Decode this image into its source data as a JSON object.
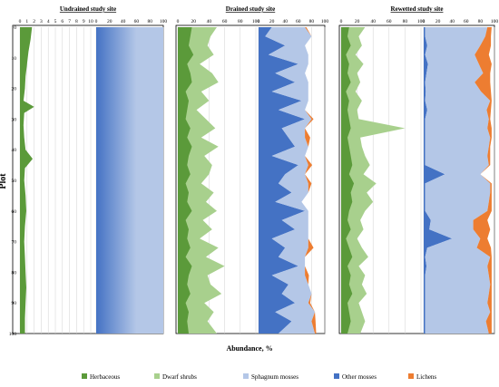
{
  "chart_data": {
    "type": "area",
    "ylabel": "Plot",
    "xlabel": "Abundance, %",
    "y_ticks": [
      0,
      10,
      20,
      30,
      40,
      50,
      60,
      70,
      80,
      90,
      100
    ],
    "ylim": [
      0,
      100
    ],
    "colors": {
      "herbaceous": "#5b9a3a",
      "dwarf_shrubs": "#a8d08d",
      "sphagnum_mosses": "#b4c7e7",
      "other_mosses": "#4472c4",
      "lichens": "#ed7d31"
    },
    "legend": [
      {
        "key": "herbaceous",
        "label": "Herbaceous"
      },
      {
        "key": "dwarf_shrubs",
        "label": "Dwarf shrubs"
      },
      {
        "key": "sphagnum_mosses",
        "label": "Sphagnum mosses"
      },
      {
        "key": "other_mosses",
        "label": "Other mosses"
      },
      {
        "key": "lichens",
        "label": "Lichens"
      }
    ],
    "panels": [
      {
        "title": "Undrained study site",
        "sub_axes": [
          {
            "key": "herbaceous",
            "ticks": [
              "0",
              "1",
              "2",
              "3",
              "4",
              "5",
              "6",
              "7",
              "8",
              "9",
              "10"
            ],
            "xlim": [
              0,
              10
            ],
            "plots": [
              0,
              4,
              8,
              12,
              16,
              20,
              24,
              26,
              28,
              32,
              36,
              40,
              43,
              46,
              50,
              55,
              60,
              65,
              70,
              75,
              80,
              85,
              90,
              95,
              100
            ],
            "values": [
              1.7,
              1.5,
              1.2,
              1.0,
              0.8,
              0.7,
              0.5,
              2.0,
              0.6,
              0.5,
              0.6,
              0.8,
              1.8,
              0.7,
              0.6,
              0.8,
              0.9,
              0.7,
              0.6,
              0.7,
              0.8,
              0.9,
              0.8,
              0.7,
              0.7
            ]
          },
          {
            "key": "sphagnum_mosses",
            "ticks": [
              "0",
              "20",
              "40",
              "60",
              "80",
              "100"
            ],
            "xlim": [
              0,
              100
            ],
            "plots": [
              0,
              100
            ],
            "values": [
              100,
              100
            ]
          }
        ]
      },
      {
        "title": "Drained study site",
        "sub_axes": [
          {
            "key": "dwarf_shrubs",
            "ticks": [
              "0",
              "20",
              "40",
              "60",
              "80",
              "100"
            ],
            "xlim": [
              0,
              100
            ],
            "plots": [
              0,
              3,
              6,
              9,
              12,
              15,
              18,
              21,
              24,
              27,
              30,
              33,
              36,
              39,
              42,
              45,
              48,
              51,
              54,
              57,
              60,
              63,
              66,
              69,
              72,
              75,
              78,
              81,
              84,
              87,
              90,
              93,
              96,
              100
            ],
            "values": [
              50,
              42,
              38,
              46,
              28,
              44,
              52,
              30,
              40,
              24,
              36,
              48,
              30,
              52,
              34,
              44,
              40,
              30,
              46,
              36,
              50,
              32,
              44,
              28,
              52,
              36,
              60,
              38,
              42,
              56,
              34,
              46,
              38,
              50
            ],
            "herb_values": [
              18,
              16,
              14,
              20,
              12,
              16,
              18,
              10,
              14,
              12,
              10,
              16,
              12,
              18,
              14,
              12,
              16,
              10,
              14,
              12,
              18,
              10,
              14,
              12,
              16,
              10,
              18,
              14,
              12,
              16,
              10,
              14,
              12,
              14
            ]
          },
          {
            "key": "moss_stack",
            "ticks": [
              "0",
              "20",
              "40",
              "60",
              "80",
              "100"
            ],
            "xlim": [
              0,
              100
            ],
            "plots": [
              0,
              3,
              6,
              9,
              12,
              15,
              18,
              21,
              24,
              27,
              30,
              33,
              36,
              39,
              42,
              45,
              48,
              51,
              54,
              57,
              60,
              63,
              66,
              69,
              72,
              75,
              78,
              81,
              84,
              87,
              90,
              93,
              96,
              100
            ],
            "other_mosses": [
              20,
              10,
              40,
              15,
              60,
              25,
              55,
              20,
              65,
              30,
              70,
              35,
              45,
              55,
              20,
              60,
              40,
              30,
              50,
              25,
              70,
              35,
              55,
              20,
              40,
              30,
              60,
              20,
              45,
              35,
              55,
              25,
              50,
              30
            ],
            "sphagnum_mosses": [
              50,
              70,
              30,
              60,
              15,
              45,
              20,
              55,
              10,
              40,
              10,
              35,
              25,
              20,
              50,
              15,
              30,
              45,
              25,
              40,
              5,
              40,
              20,
              55,
              35,
              40,
              10,
              50,
              30,
              45,
              20,
              60,
              30,
              55
            ],
            "lichens": [
              2,
              0,
              0,
              0,
              0,
              0,
              0,
              0,
              0,
              0,
              3,
              0,
              8,
              0,
              0,
              6,
              0,
              5,
              0,
              0,
              0,
              0,
              0,
              0,
              8,
              0,
              0,
              6,
              0,
              0,
              3,
              0,
              6,
              2
            ]
          }
        ]
      },
      {
        "title": "Rewetted study site",
        "sub_axes": [
          {
            "key": "dwarf_shrubs",
            "ticks": [
              "0",
              "20",
              "40",
              "60",
              "80",
              "100"
            ],
            "xlim": [
              0,
              100
            ],
            "plots": [
              0,
              3,
              6,
              9,
              12,
              15,
              18,
              21,
              24,
              27,
              30,
              33,
              36,
              39,
              42,
              45,
              48,
              51,
              54,
              57,
              60,
              63,
              66,
              69,
              72,
              75,
              78,
              81,
              84,
              87,
              90,
              93,
              96,
              100
            ],
            "values": [
              30,
              22,
              26,
              18,
              28,
              20,
              24,
              18,
              26,
              20,
              22,
              80,
              24,
              26,
              30,
              36,
              28,
              44,
              32,
              40,
              30,
              24,
              28,
              20,
              26,
              34,
              22,
              30,
              26,
              32,
              22,
              26,
              30,
              24
            ],
            "herb_values": [
              10,
              8,
              12,
              6,
              10,
              8,
              12,
              6,
              10,
              8,
              10,
              12,
              8,
              10,
              12,
              14,
              10,
              16,
              12,
              14,
              10,
              8,
              12,
              6,
              10,
              14,
              8,
              12,
              10,
              14,
              8,
              10,
              12,
              8
            ]
          },
          {
            "key": "moss_stack",
            "ticks": [
              "0",
              "20",
              "40",
              "60",
              "80",
              "100"
            ],
            "xlim": [
              0,
              100
            ],
            "plots": [
              0,
              3,
              6,
              9,
              12,
              15,
              18,
              21,
              24,
              27,
              30,
              33,
              36,
              39,
              42,
              45,
              48,
              51,
              54,
              57,
              60,
              63,
              66,
              69,
              72,
              75,
              78,
              81,
              84,
              87,
              90,
              93,
              96,
              100
            ],
            "other_mosses": [
              2,
              2,
              5,
              2,
              6,
              4,
              2,
              3,
              2,
              5,
              2,
              2,
              2,
              2,
              2,
              2,
              30,
              2,
              2,
              2,
              2,
              10,
              8,
              40,
              5,
              2,
              4,
              2,
              2,
              2,
              2,
              2,
              2,
              2
            ],
            "sphagnum_mosses": [
              88,
              85,
              75,
              70,
              72,
              80,
              70,
              78,
              92,
              84,
              90,
              88,
              92,
              90,
              88,
              90,
              50,
              92,
              92,
              90,
              88,
              60,
              62,
              40,
              70,
              92,
              86,
              90,
              92,
              90,
              88,
              92,
              86,
              90
            ],
            "lichens": [
              6,
              8,
              15,
              20,
              18,
              10,
              22,
              14,
              2,
              6,
              2,
              6,
              2,
              2,
              4,
              2,
              0,
              2,
              2,
              4,
              6,
              20,
              24,
              10,
              20,
              2,
              6,
              4,
              2,
              4,
              6,
              2,
              8,
              4
            ]
          }
        ]
      }
    ]
  }
}
